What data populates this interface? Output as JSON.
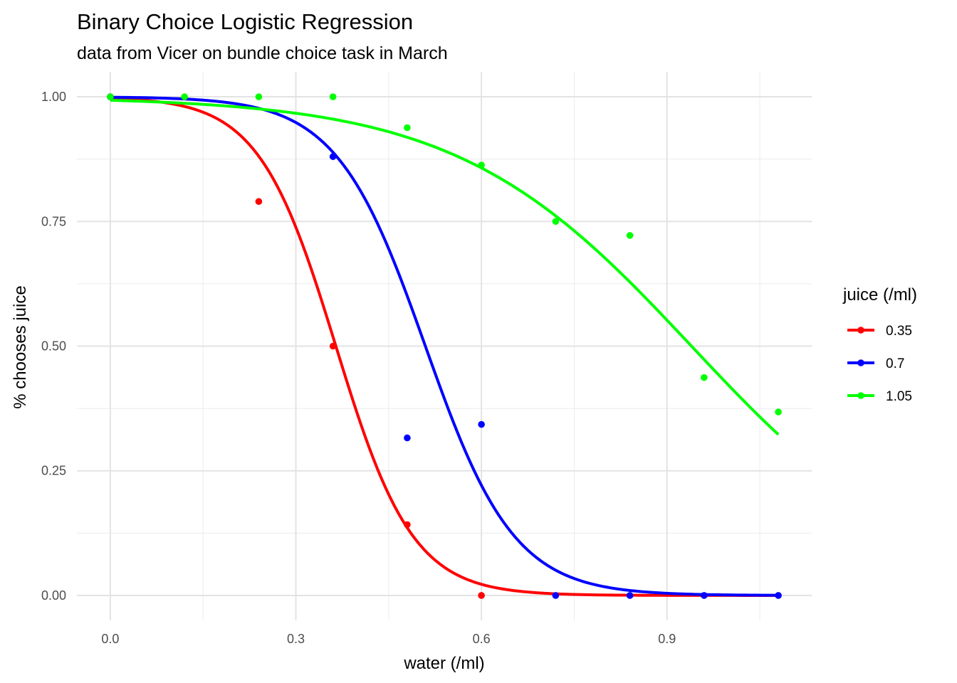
{
  "chart_data": {
    "type": "line",
    "title": "Binary Choice Logistic Regression",
    "subtitle": "data from Vicer on bundle choice task in March",
    "xlabel": "water (/ml)",
    "ylabel": "% chooses juice",
    "xlim": [
      -0.054,
      1.134
    ],
    "ylim": [
      -0.05,
      1.05
    ],
    "x_ticks": [
      0.0,
      0.3,
      0.6,
      0.9
    ],
    "x_tick_labels": [
      "0.0",
      "0.3",
      "0.6",
      "0.9"
    ],
    "y_ticks": [
      0.0,
      0.25,
      0.5,
      0.75,
      1.0
    ],
    "y_tick_labels": [
      "0.00",
      "0.25",
      "0.50",
      "0.75",
      "1.00"
    ],
    "grid": true,
    "legend": {
      "title": "juice (/ml)",
      "position": "right"
    },
    "series": [
      {
        "name": "0.35",
        "color": "#ff0000",
        "points": [
          {
            "x": 0.0,
            "y": 1.0
          },
          {
            "x": 0.24,
            "y": 0.79
          },
          {
            "x": 0.36,
            "y": 0.5
          },
          {
            "x": 0.48,
            "y": 0.142
          },
          {
            "x": 0.6,
            "y": 0.0
          }
        ],
        "fit": {
          "intercept": 5.853,
          "slope": -16.05,
          "x_range": [
            0.0,
            1.08
          ]
        }
      },
      {
        "name": "0.7",
        "color": "#0000ff",
        "points": [
          {
            "x": 0.0,
            "y": 1.0
          },
          {
            "x": 0.36,
            "y": 0.88
          },
          {
            "x": 0.48,
            "y": 0.316
          },
          {
            "x": 0.6,
            "y": 0.343
          },
          {
            "x": 0.72,
            "y": 0.0
          },
          {
            "x": 0.84,
            "y": 0.0
          },
          {
            "x": 0.96,
            "y": 0.0
          },
          {
            "x": 1.08,
            "y": 0.0
          }
        ],
        "fit": {
          "intercept": 7.085,
          "slope": -13.91,
          "x_range": [
            0.0,
            1.08
          ]
        }
      },
      {
        "name": "1.05",
        "color": "#00ff00",
        "points": [
          {
            "x": 0.0,
            "y": 1.0
          },
          {
            "x": 0.12,
            "y": 1.0
          },
          {
            "x": 0.24,
            "y": 1.0
          },
          {
            "x": 0.36,
            "y": 1.0
          },
          {
            "x": 0.48,
            "y": 0.938
          },
          {
            "x": 0.6,
            "y": 0.863
          },
          {
            "x": 0.72,
            "y": 0.75
          },
          {
            "x": 0.84,
            "y": 0.722
          },
          {
            "x": 0.96,
            "y": 0.437
          },
          {
            "x": 1.08,
            "y": 0.368
          }
        ],
        "fit": {
          "intercept": 4.961,
          "slope": -5.28,
          "x_range": [
            0.0,
            1.08
          ]
        }
      }
    ]
  }
}
